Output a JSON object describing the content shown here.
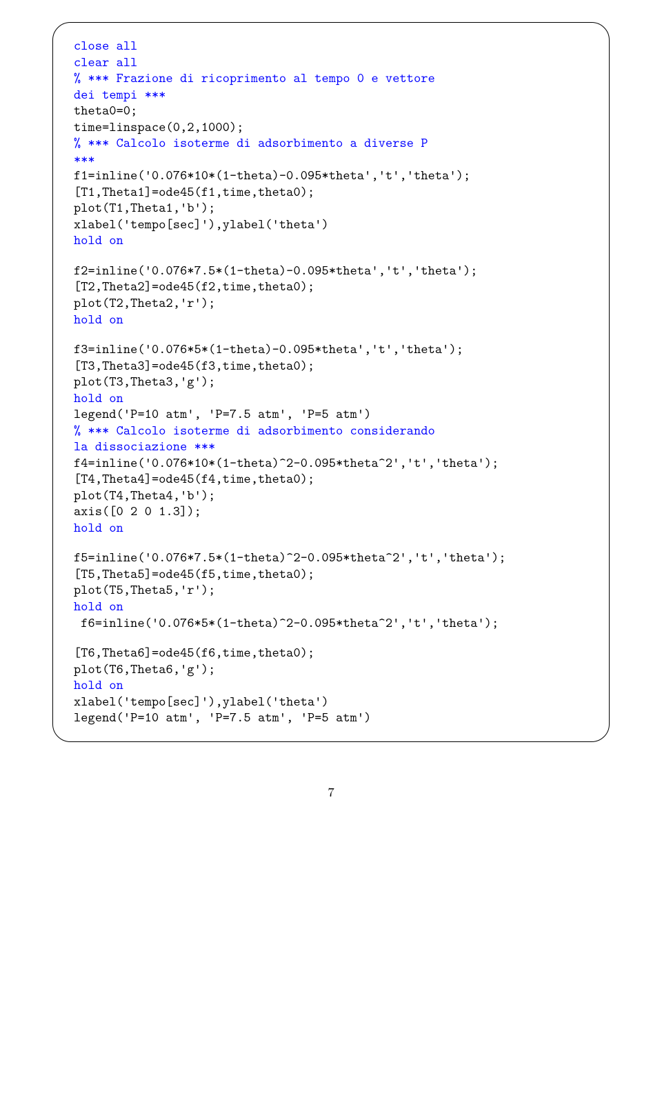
{
  "colors": {
    "keyword": "#0000ff",
    "text": "#000000",
    "comment": "#0000ff",
    "background": "#ffffff",
    "border": "#000000"
  },
  "font": {
    "family_mono": "Latin Modern Mono / Courier",
    "size_pt": 10,
    "line_height": 1.22
  },
  "page_number": "7",
  "code": {
    "blocks": [
      [
        [
          [
            "close ",
            "kw"
          ],
          [
            "all",
            "kw"
          ]
        ],
        [
          [
            "clear ",
            "kw"
          ],
          [
            "all",
            "kw"
          ]
        ],
        [
          [
            "% *** Frazione di ricoprimento al tempo 0 e vettore",
            "cm"
          ]
        ],
        [
          [
            "dei tempi ***",
            "cm"
          ]
        ],
        [
          [
            "theta0=0;",
            "tx"
          ]
        ],
        [
          [
            "time=linspace(0,2,1000);",
            "tx"
          ]
        ],
        [
          [
            "% *** Calcolo isoterme di adsorbimento a diverse P",
            "cm"
          ]
        ],
        [
          [
            "***",
            "cm"
          ]
        ],
        [
          [
            "f1=inline('0.076*10*(1-theta)-0.095*theta','t','theta');",
            "tx"
          ]
        ],
        [
          [
            "[T1,Theta1]=ode45(f1,time,theta0);",
            "tx"
          ]
        ],
        [
          [
            "plot(T1,Theta1,'b');",
            "tx"
          ]
        ],
        [
          [
            "xlabel('tempo[sec]'),ylabel('theta')",
            "tx"
          ]
        ],
        [
          [
            "hold ",
            "kw"
          ],
          [
            "on",
            "kw"
          ]
        ]
      ],
      [
        [
          [
            "f2=inline('0.076*7.5*(1-theta)-0.095*theta','t','theta');",
            "tx"
          ]
        ],
        [
          [
            "[T2,Theta2]=ode45(f2,time,theta0);",
            "tx"
          ]
        ],
        [
          [
            "plot(T2,Theta2,'r');",
            "tx"
          ]
        ],
        [
          [
            "hold ",
            "kw"
          ],
          [
            "on",
            "kw"
          ]
        ]
      ],
      [
        [
          [
            "f3=inline('0.076*5*(1-theta)-0.095*theta','t','theta');",
            "tx"
          ]
        ],
        [
          [
            "[T3,Theta3]=ode45(f3,time,theta0);",
            "tx"
          ]
        ],
        [
          [
            "plot(T3,Theta3,'g');",
            "tx"
          ]
        ],
        [
          [
            "hold ",
            "kw"
          ],
          [
            "on",
            "kw"
          ]
        ],
        [
          [
            "legend('P=10 atm', 'P=7.5 atm', 'P=5 atm')",
            "tx"
          ]
        ],
        [
          [
            "% *** Calcolo isoterme di adsorbimento considerando",
            "cm"
          ]
        ],
        [
          [
            "la dissociazione ***",
            "cm"
          ]
        ],
        [
          [
            "f4=inline('0.076*10*(1-theta)^2-0.095*theta^2','t','theta');",
            "tx"
          ]
        ],
        [
          [
            "[T4,Theta4]=ode45(f4,time,theta0);",
            "tx"
          ]
        ],
        [
          [
            "plot(T4,Theta4,'b');",
            "tx"
          ]
        ],
        [
          [
            "axis([0 2 0 1.3]);",
            "tx"
          ]
        ],
        [
          [
            "hold ",
            "kw"
          ],
          [
            "on",
            "kw"
          ]
        ]
      ],
      [
        [
          [
            "f5=inline('0.076*7.5*(1-theta)^2-0.095*theta^2','t','theta');",
            "tx"
          ]
        ],
        [
          [
            "[T5,Theta5]=ode45(f5,time,theta0);",
            "tx"
          ]
        ],
        [
          [
            "plot(T5,Theta5,'r');",
            "tx"
          ]
        ],
        [
          [
            "hold ",
            "kw"
          ],
          [
            "on",
            "kw"
          ]
        ],
        [
          [
            " f6=inline('0.076*5*(1-theta)^2-0.095*theta^2','t','theta');",
            "tx"
          ]
        ]
      ],
      [
        [
          [
            "[T6,Theta6]=ode45(f6,time,theta0);",
            "tx"
          ]
        ],
        [
          [
            "plot(T6,Theta6,'g');",
            "tx"
          ]
        ],
        [
          [
            "hold ",
            "kw"
          ],
          [
            "on",
            "kw"
          ]
        ],
        [
          [
            "xlabel('tempo[sec]'),ylabel('theta')",
            "tx"
          ]
        ],
        [
          [
            "legend('P=10 atm', 'P=7.5 atm', 'P=5 atm')",
            "tx"
          ]
        ]
      ]
    ]
  }
}
